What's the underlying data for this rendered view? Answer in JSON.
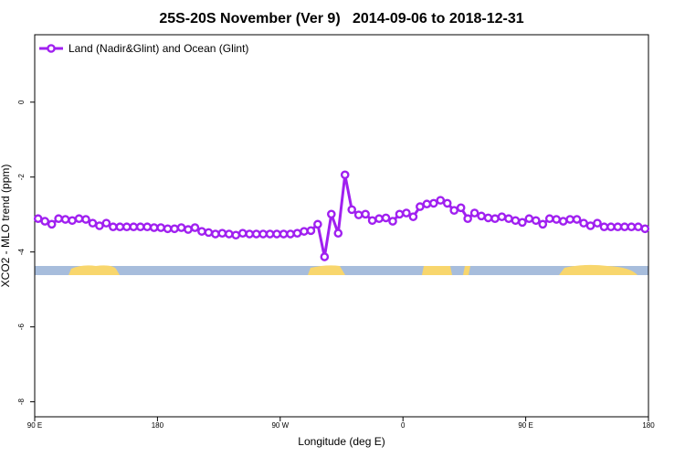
{
  "chart_data": {
    "type": "line",
    "title": "25S-20S November (Ver 9)   2014-09-06 to 2018-12-31",
    "x_label": "Longitude (deg E)",
    "y_label": "XCO2 - MLO trend (ppm)",
    "x": [
      92.5,
      97.5,
      102.5,
      107.5,
      112.5,
      117.5,
      122.5,
      127.5,
      132.5,
      137.5,
      142.5,
      147.5,
      152.5,
      157.5,
      162.5,
      167.5,
      172.5,
      177.5,
      182.5,
      187.5,
      192.5,
      197.5,
      202.5,
      207.5,
      212.5,
      217.5,
      222.5,
      227.5,
      232.5,
      237.5,
      242.5,
      247.5,
      252.5,
      257.5,
      262.5,
      267.5,
      272.5,
      277.5,
      282.5,
      287.5,
      292.5,
      297.5,
      302.5,
      307.5,
      312.5,
      317.5,
      322.5,
      327.5,
      332.5,
      337.5,
      342.5,
      347.5,
      352.5,
      357.5,
      362.5,
      367.5,
      372.5,
      377.5,
      382.5,
      387.5,
      392.5,
      397.5,
      402.5,
      407.5,
      412.5,
      417.5,
      422.5,
      427.5,
      432.5,
      437.5,
      442.5,
      447.5,
      452.5,
      457.5,
      462.5,
      467.5,
      472.5,
      477.5,
      482.5,
      487.5,
      492.5,
      497.5,
      502.5,
      507.5,
      512.5,
      517.5,
      522.5,
      527.5,
      532.5,
      537.5
    ],
    "series": [
      {
        "name": "Land (Nadir&Glint) and Ocean (Glint)",
        "color": "#a020f0",
        "values": [
          -3.11,
          -3.18,
          -3.26,
          -3.11,
          -3.13,
          -3.16,
          -3.11,
          -3.13,
          -3.23,
          -3.3,
          -3.23,
          -3.33,
          -3.33,
          -3.33,
          -3.33,
          -3.33,
          -3.33,
          -3.35,
          -3.35,
          -3.38,
          -3.38,
          -3.35,
          -3.4,
          -3.35,
          -3.45,
          -3.48,
          -3.52,
          -3.5,
          -3.52,
          -3.55,
          -3.5,
          -3.52,
          -3.52,
          -3.52,
          -3.52,
          -3.52,
          -3.52,
          -3.52,
          -3.5,
          -3.45,
          -3.43,
          -3.26,
          -4.13,
          -2.99,
          -3.5,
          -1.94,
          -2.87,
          -3.01,
          -2.99,
          -3.16,
          -3.11,
          -3.09,
          -3.18,
          -2.99,
          -2.96,
          -3.06,
          -2.79,
          -2.72,
          -2.7,
          -2.62,
          -2.7,
          -2.89,
          -2.82,
          -3.11,
          -2.96,
          -3.04,
          -3.09,
          -3.11,
          -3.06,
          -3.11,
          -3.16,
          -3.21,
          -3.11,
          -3.16,
          -3.26,
          -3.11,
          -3.13,
          -3.18,
          -3.13,
          -3.13,
          -3.23,
          -3.3,
          -3.23,
          -3.33,
          -3.33,
          -3.33,
          -3.33,
          -3.33,
          -3.33,
          -3.38
        ]
      }
    ],
    "xlim": [
      90,
      540
    ],
    "xticks": [
      {
        "value": 90,
        "label": "90 E"
      },
      180,
      {
        "value": 270,
        "label": "90 W"
      },
      {
        "value": 360,
        "label": "0"
      },
      {
        "value": 450,
        "label": "90 E"
      },
      {
        "value": 540,
        "label": "180"
      }
    ],
    "ylim": [
      -8.4,
      1.8
    ],
    "yticks": [
      0,
      -2,
      -4,
      -6,
      -8
    ],
    "legend": "top-left"
  }
}
